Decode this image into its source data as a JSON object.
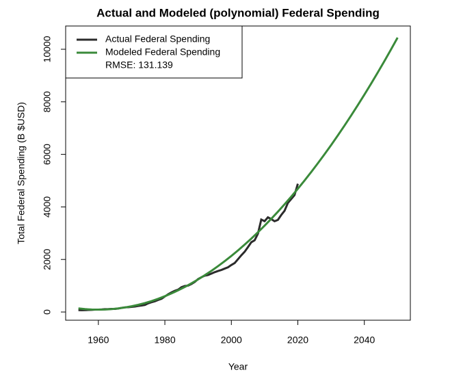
{
  "chart_data": {
    "type": "line",
    "title": "Actual and Modeled (polynomial) Federal Spending",
    "x_label": "Year",
    "y_label": "Total Federal Spending (B $USD)",
    "legend_position": "topleft",
    "legend_note": "RMSE: 131.139",
    "xlim": [
      1950.16,
      2053.84
    ],
    "ylim": [
      -312,
      10885
    ],
    "xticks": [
      1960,
      1980,
      2000,
      2020,
      2040
    ],
    "yticks": [
      0,
      2000,
      4000,
      6000,
      8000,
      10000
    ],
    "series": [
      {
        "name": "Actual Federal Spending",
        "color": "#2b2b2b",
        "x": [
          1954,
          1955,
          1956,
          1957,
          1958,
          1959,
          1960,
          1961,
          1962,
          1963,
          1964,
          1965,
          1966,
          1967,
          1968,
          1969,
          1970,
          1971,
          1972,
          1973,
          1974,
          1975,
          1976,
          1977,
          1978,
          1979,
          1980,
          1981,
          1982,
          1983,
          1984,
          1985,
          1986,
          1987,
          1988,
          1989,
          1990,
          1991,
          1992,
          1993,
          1994,
          1995,
          1996,
          1997,
          1998,
          1999,
          2000,
          2001,
          2002,
          2003,
          2004,
          2005,
          2006,
          2007,
          2008,
          2009,
          2010,
          2011,
          2012,
          2013,
          2014,
          2015,
          2016,
          2017,
          2018,
          2019,
          2020
        ],
        "values": [
          71,
          68,
          71,
          77,
          82,
          92,
          92,
          98,
          107,
          111,
          119,
          118,
          135,
          158,
          178,
          184,
          196,
          210,
          231,
          246,
          269,
          332,
          372,
          409,
          459,
          504,
          591,
          678,
          746,
          808,
          852,
          946,
          990,
          1004,
          1065,
          1144,
          1253,
          1324,
          1382,
          1409,
          1462,
          1516,
          1561,
          1601,
          1652,
          1702,
          1789,
          1863,
          2011,
          2160,
          2293,
          2472,
          2655,
          2729,
          2983,
          3518,
          3457,
          3603,
          3537,
          3455,
          3506,
          3692,
          3853,
          4150,
          4300,
          4450,
          4880
        ]
      },
      {
        "name": "Modeled Federal Spending",
        "color": "#3a8a3a",
        "x": [
          1954,
          1956,
          1958,
          1960,
          1962,
          1964,
          1966,
          1968,
          1970,
          1972,
          1974,
          1976,
          1978,
          1980,
          1982,
          1984,
          1986,
          1988,
          1990,
          1992,
          1994,
          1996,
          1998,
          2000,
          2002,
          2004,
          2006,
          2008,
          2010,
          2012,
          2014,
          2016,
          2018,
          2020,
          2022,
          2024,
          2026,
          2028,
          2030,
          2032,
          2034,
          2036,
          2038,
          2040,
          2042,
          2044,
          2046,
          2048,
          2050
        ],
        "values": [
          136,
          110,
          95,
          90,
          95,
          110,
          136,
          172,
          218,
          274,
          340,
          417,
          504,
          601,
          709,
          826,
          954,
          1092,
          1240,
          1399,
          1567,
          1746,
          1935,
          2135,
          2344,
          2564,
          2794,
          3035,
          3285,
          3546,
          3817,
          4098,
          4389,
          4691,
          5003,
          5325,
          5657,
          5999,
          6352,
          6715,
          7088,
          7472,
          7865,
          8269,
          8683,
          9108,
          9542,
          9987,
          10442
        ]
      }
    ]
  }
}
